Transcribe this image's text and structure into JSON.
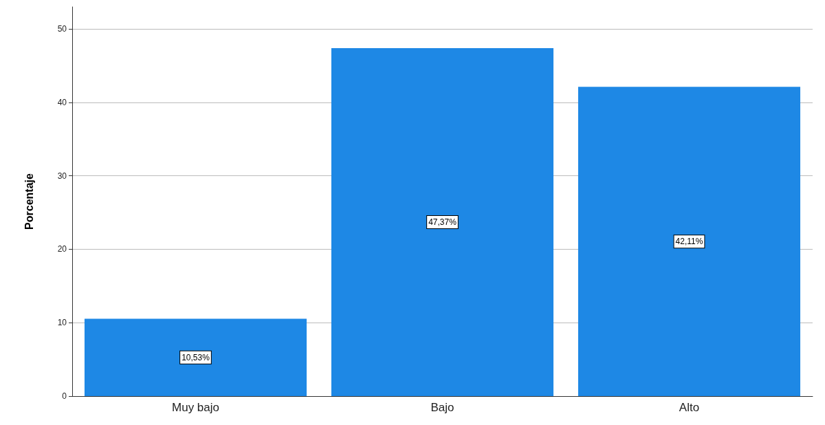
{
  "chart_data": {
    "type": "bar",
    "ylabel": "Porcentaje",
    "categories": [
      "Muy bajo",
      "Bajo",
      "Alto"
    ],
    "values": [
      10.53,
      47.37,
      42.11
    ],
    "color": "#1e88e5",
    "value_labels": [
      "10,53%",
      "47,37%",
      "42,11%"
    ],
    "ylim": [
      0,
      53
    ],
    "yticks": [
      0,
      10,
      20,
      30,
      40,
      50
    ],
    "grid": "y"
  }
}
